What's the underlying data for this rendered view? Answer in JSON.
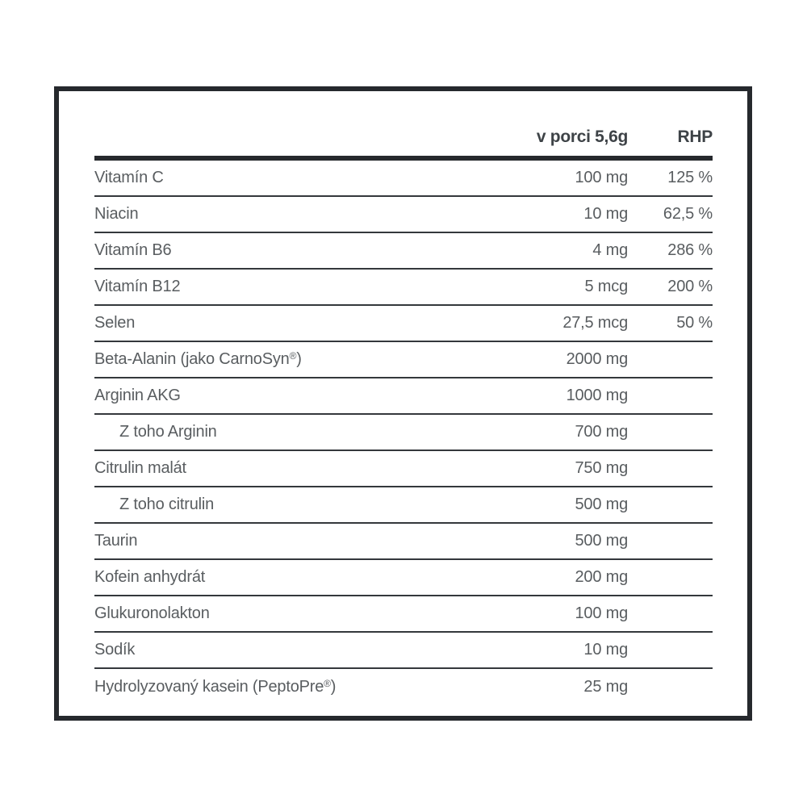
{
  "panel": {
    "border_color": "#26292d",
    "separator_color": "#34383c",
    "header_text_color": "#3e4347",
    "row_text_color": "#595d60"
  },
  "header": {
    "serving_label": "v porci 5,6g",
    "rhp_label": "RHP"
  },
  "rows": [
    {
      "label_pre": "Vitamín C",
      "serving": "100 mg",
      "rhp": "125 %"
    },
    {
      "label_pre": "Niacin",
      "serving": "10 mg",
      "rhp": "62,5 %"
    },
    {
      "label_pre": "Vitamín B6",
      "serving": "4 mg",
      "rhp": "286 %"
    },
    {
      "label_pre": "Vitamín B12",
      "serving": "5 mcg",
      "rhp": "200 %"
    },
    {
      "label_pre": "Selen",
      "serving": "27,5 mcg",
      "rhp": "50 %"
    },
    {
      "label_pre": "Beta-Alanin (jako CarnoSyn",
      "label_sup": "®",
      "label_post": ")",
      "serving": "2000 mg",
      "rhp": ""
    },
    {
      "label_pre": "Arginin AKG",
      "serving": "1000 mg",
      "rhp": ""
    },
    {
      "label_pre": "Z toho Arginin",
      "serving": "700 mg",
      "rhp": "",
      "indent": true
    },
    {
      "label_pre": "Citrulin malát",
      "serving": "750 mg",
      "rhp": ""
    },
    {
      "label_pre": "Z toho citrulin",
      "serving": "500 mg",
      "rhp": "",
      "indent": true
    },
    {
      "label_pre": "Taurin",
      "serving": "500 mg",
      "rhp": ""
    },
    {
      "label_pre": "Kofein anhydrát",
      "serving": "200 mg",
      "rhp": ""
    },
    {
      "label_pre": "Glukuronolakton",
      "serving": "100 mg",
      "rhp": ""
    },
    {
      "label_pre": "Sodík",
      "serving": "10 mg",
      "rhp": ""
    },
    {
      "label_pre": "Hydrolyzovaný kasein (PeptoPre",
      "label_sup": "®",
      "label_post": ")",
      "serving": "25 mg",
      "rhp": ""
    }
  ]
}
